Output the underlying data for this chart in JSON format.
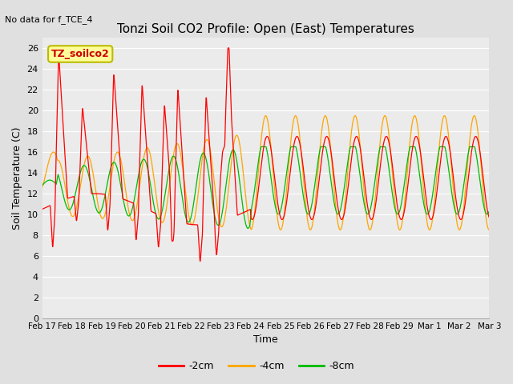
{
  "title": "Tonzi Soil CO2 Profile: Open (East) Temperatures",
  "no_data_text": "No data for f_TCE_4",
  "xlabel": "Time",
  "ylabel": "Soil Temperature (C)",
  "ylim": [
    0,
    27
  ],
  "yticks": [
    0,
    2,
    4,
    6,
    8,
    10,
    12,
    14,
    16,
    18,
    20,
    22,
    24,
    26
  ],
  "color_2cm": "#FF0000",
  "color_4cm": "#FFA500",
  "color_8cm": "#00BB00",
  "legend_label_2cm": "-2cm",
  "legend_label_4cm": "-4cm",
  "legend_label_8cm": "-8cm",
  "legend_text": "TZ_soilco2",
  "xtick_labels": [
    "Feb 17",
    "Feb 18",
    "Feb 19",
    "Feb 20",
    "Feb 21",
    "Feb 22",
    "Feb 23",
    "Feb 24",
    "Feb 25",
    "Feb 26",
    "Feb 27",
    "Feb 28",
    "Feb 29",
    "Mar 1",
    "Mar 2",
    "Mar 3"
  ],
  "bg_color": "#E0E0E0",
  "plot_bg": "#EBEBEB",
  "grid_color": "#FFFFFF",
  "num_points": 2000
}
